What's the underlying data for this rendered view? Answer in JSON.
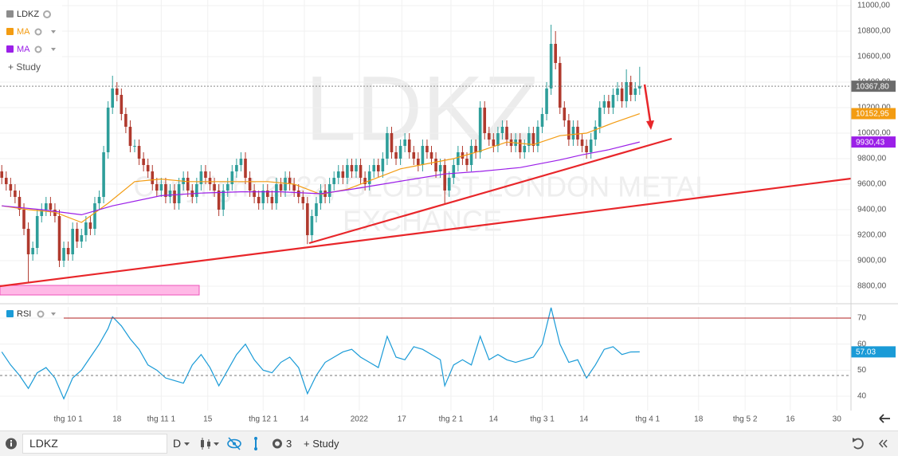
{
  "chart_data": [
    {
      "type": "candlestick",
      "name": "LDKZ",
      "color": "#8c8c8c",
      "up_color": "#2e9e9a",
      "down_color": "#b03a2e",
      "watermark": "LDKZ",
      "copyright": [
        "Copyright 2022, GLOBEST LONDON METAL",
        "EXCHANCE"
      ],
      "x": [
        0,
        1,
        2,
        3,
        4,
        5,
        6,
        7,
        8,
        9,
        10,
        11,
        12,
        13,
        14,
        15,
        16,
        17,
        18,
        19,
        20,
        21,
        22,
        23,
        24,
        25,
        26,
        27,
        28,
        29,
        30,
        31,
        32,
        33,
        34,
        35,
        36,
        37,
        38,
        39,
        40,
        41,
        42,
        43,
        44,
        45,
        46,
        47,
        48,
        49,
        50,
        51,
        52,
        53,
        54,
        55,
        56,
        57,
        58,
        59,
        60,
        61,
        62,
        63,
        64,
        65,
        66,
        67,
        68,
        69,
        70,
        71,
        72,
        73,
        74,
        75,
        76,
        77,
        78,
        79,
        80,
        81,
        82,
        83,
        84,
        85,
        86,
        87,
        88,
        89,
        90,
        91,
        92,
        93,
        94,
        95,
        96,
        97,
        98,
        99,
        100,
        101,
        102,
        103,
        104,
        105,
        106,
        107,
        108,
        109,
        110,
        111,
        112,
        113,
        114,
        115,
        116,
        117,
        118,
        119,
        120,
        121,
        122,
        123,
        124,
        125,
        126,
        127,
        128,
        129,
        130,
        131,
        132,
        133,
        134,
        135,
        136,
        137,
        138,
        139,
        140,
        141,
        142,
        143,
        144
      ],
      "open": [
        9700,
        9650,
        9600,
        9550,
        9500,
        9400,
        9250,
        9050,
        9100,
        9350,
        9400,
        9450,
        9400,
        9350,
        9000,
        9100,
        9050,
        9250,
        9150,
        9200,
        9300,
        9250,
        9450,
        9500,
        9850,
        10200,
        10350,
        10300,
        10150,
        10050,
        9900,
        9900,
        9800,
        9750,
        9700,
        9600,
        9550,
        9600,
        9500,
        9550,
        9450,
        9600,
        9650,
        9550,
        9500,
        9600,
        9700,
        9650,
        9600,
        9550,
        9400,
        9550,
        9600,
        9700,
        9750,
        9800,
        9650,
        9550,
        9500,
        9450,
        9550,
        9500,
        9450,
        9600,
        9550,
        9650,
        9600,
        9550,
        9500,
        9450,
        9200,
        9350,
        9450,
        9550,
        9500,
        9600,
        9650,
        9700,
        9650,
        9750,
        9700,
        9750,
        9650,
        9600,
        9700,
        9750,
        9700,
        9800,
        10000,
        9850,
        9800,
        9900,
        9950,
        9850,
        9800,
        9750,
        9900,
        9850,
        9800,
        9700,
        9750,
        9550,
        9650,
        9750,
        9850,
        9800,
        9750,
        9900,
        9850,
        10200,
        10000,
        9950,
        9900,
        10000,
        10050,
        9950,
        9900,
        9950,
        9850,
        9900,
        10000,
        9900,
        10050,
        10150,
        10350,
        10700,
        10550,
        10200,
        10100,
        9950,
        10050,
        9950,
        9900,
        9850,
        9950,
        10050,
        10200,
        10250,
        10200,
        10300,
        10350,
        10250,
        10400,
        10300,
        10350
      ],
      "high": [
        9750,
        9700,
        9650,
        9600,
        9550,
        9450,
        9300,
        9150,
        9400,
        9450,
        9500,
        9500,
        9450,
        9400,
        9150,
        9150,
        9300,
        9300,
        9250,
        9350,
        9350,
        9500,
        9550,
        9900,
        10250,
        10450,
        10400,
        10350,
        10200,
        10100,
        9950,
        9950,
        9850,
        9800,
        9750,
        9650,
        9650,
        9650,
        9600,
        9600,
        9650,
        9700,
        9700,
        9600,
        9650,
        9750,
        9750,
        9700,
        9650,
        9600,
        9600,
        9650,
        9750,
        9800,
        9850,
        9850,
        9700,
        9600,
        9550,
        9600,
        9600,
        9550,
        9650,
        9650,
        9700,
        9700,
        9650,
        9600,
        9550,
        9500,
        9400,
        9500,
        9600,
        9600,
        9650,
        9700,
        9750,
        9750,
        9800,
        9800,
        9800,
        9800,
        9700,
        9750,
        9800,
        9800,
        9850,
        10050,
        10050,
        9900,
        9950,
        10000,
        10000,
        9900,
        9850,
        9950,
        9950,
        9900,
        9850,
        9800,
        9800,
        9700,
        9800,
        9900,
        9900,
        9850,
        9950,
        9950,
        10250,
        10250,
        10050,
        10000,
        10050,
        10100,
        10100,
        10000,
        10000,
        10000,
        9950,
        10050,
        10050,
        10100,
        10200,
        10400,
        10850,
        10800,
        10600,
        10250,
        10150,
        10100,
        10100,
        10000,
        9950,
        10000,
        10100,
        10250,
        10300,
        10300,
        10350,
        10400,
        10400,
        10500,
        10450,
        10400,
        10520
      ],
      "low": [
        9600,
        9550,
        9500,
        9450,
        9350,
        9200,
        8830,
        9000,
        9050,
        9300,
        9350,
        9350,
        9300,
        8950,
        8950,
        9000,
        9000,
        9100,
        9100,
        9150,
        9200,
        9200,
        9400,
        9450,
        9800,
        10150,
        10250,
        10100,
        10000,
        9850,
        9850,
        9750,
        9700,
        9650,
        9550,
        9500,
        9500,
        9450,
        9450,
        9400,
        9400,
        9550,
        9500,
        9450,
        9450,
        9550,
        9600,
        9550,
        9500,
        9350,
        9350,
        9500,
        9550,
        9650,
        9700,
        9600,
        9500,
        9450,
        9400,
        9400,
        9450,
        9400,
        9400,
        9500,
        9500,
        9550,
        9500,
        9450,
        9400,
        9130,
        9150,
        9300,
        9400,
        9450,
        9450,
        9550,
        9600,
        9600,
        9600,
        9650,
        9650,
        9600,
        9550,
        9550,
        9650,
        9650,
        9650,
        9750,
        9800,
        9750,
        9750,
        9850,
        9800,
        9750,
        9700,
        9700,
        9800,
        9750,
        9650,
        9650,
        9450,
        9500,
        9600,
        9700,
        9750,
        9700,
        9700,
        9800,
        9800,
        9950,
        9900,
        9850,
        9850,
        9950,
        9900,
        9850,
        9850,
        9800,
        9800,
        9850,
        9850,
        9850,
        10000,
        10100,
        10300,
        10500,
        10150,
        10050,
        9900,
        9900,
        9900,
        9850,
        9800,
        9800,
        9900,
        10000,
        10150,
        10150,
        10150,
        10250,
        10200,
        10200,
        10250,
        10250,
        10300
      ],
      "close": [
        9650,
        9600,
        9550,
        9500,
        9400,
        9250,
        9050,
        9100,
        9350,
        9400,
        9450,
        9400,
        9350,
        9000,
        9100,
        9050,
        9250,
        9150,
        9200,
        9300,
        9250,
        9450,
        9500,
        9850,
        10200,
        10350,
        10300,
        10150,
        10050,
        9900,
        9900,
        9800,
        9750,
        9700,
        9600,
        9550,
        9600,
        9500,
        9550,
        9450,
        9600,
        9650,
        9550,
        9500,
        9600,
        9700,
        9650,
        9600,
        9550,
        9400,
        9550,
        9600,
        9700,
        9750,
        9800,
        9650,
        9550,
        9500,
        9450,
        9550,
        9500,
        9450,
        9600,
        9550,
        9650,
        9600,
        9550,
        9500,
        9450,
        9200,
        9350,
        9450,
        9550,
        9500,
        9600,
        9650,
        9700,
        9650,
        9750,
        9700,
        9750,
        9650,
        9600,
        9700,
        9750,
        9700,
        9800,
        10000,
        9850,
        9800,
        9900,
        9950,
        9850,
        9800,
        9750,
        9900,
        9850,
        9800,
        9700,
        9750,
        9550,
        9650,
        9750,
        9850,
        9800,
        9750,
        9900,
        9850,
        10200,
        10000,
        9950,
        9900,
        10000,
        10050,
        9950,
        9900,
        9950,
        9850,
        9900,
        10000,
        9900,
        10050,
        10150,
        10350,
        10700,
        10550,
        10200,
        10100,
        9950,
        10050,
        9950,
        9900,
        9850,
        9950,
        10050,
        10200,
        10250,
        10200,
        10300,
        10350,
        10250,
        10400,
        10300,
        10350,
        10367.8
      ],
      "last_price": {
        "value": 10367.8,
        "label": "10367,80"
      },
      "series": [
        {
          "name": "MA",
          "color": "#f39c12",
          "x": [
            0,
            6,
            12,
            18,
            24,
            30,
            36,
            42,
            48,
            54,
            60,
            66,
            72,
            78,
            84,
            90,
            96,
            102,
            108,
            114,
            120,
            126,
            132,
            138,
            144
          ],
          "values": [
            9430,
            9400,
            9380,
            9300,
            9450,
            9620,
            9640,
            9620,
            9620,
            9620,
            9620,
            9600,
            9520,
            9560,
            9640,
            9720,
            9760,
            9800,
            9860,
            9930,
            9910,
            9980,
            10000,
            10080,
            10152.95
          ],
          "value_labels": [
            null,
            null,
            null,
            null,
            null,
            null,
            null,
            null,
            null,
            null,
            null,
            null,
            null,
            null,
            null,
            null,
            null,
            null,
            null,
            null,
            null,
            null,
            null,
            null,
            "10152,95"
          ]
        },
        {
          "name": "MA",
          "color": "#9b1fe8",
          "x": [
            0,
            9,
            18,
            25,
            36,
            45,
            54,
            63,
            72,
            79,
            86,
            93,
            100,
            108,
            117,
            126,
            131,
            137,
            144
          ],
          "values": [
            9430,
            9400,
            9360,
            9430,
            9510,
            9530,
            9540,
            9540,
            9525,
            9560,
            9600,
            9640,
            9680,
            9700,
            9730,
            9790,
            9830,
            9870,
            9930.43
          ],
          "value_labels": [
            null,
            null,
            null,
            null,
            null,
            null,
            null,
            null,
            null,
            null,
            null,
            null,
            null,
            null,
            null,
            null,
            null,
            null,
            "9930,43"
          ]
        }
      ],
      "xlim": [
        -0.4,
        191.7
      ],
      "ylim": [
        8668.75,
        11043.75
      ],
      "yticks": [
        {
          "value": 8800,
          "label": "8800,00"
        },
        {
          "value": 9000,
          "label": "9000,00"
        },
        {
          "value": 9200,
          "label": "9200,00"
        },
        {
          "value": 9400,
          "label": "9400,00"
        },
        {
          "value": 9600,
          "label": "9600,00"
        },
        {
          "value": 9800,
          "label": "9800,00"
        },
        {
          "value": 10000,
          "label": "10000,00"
        },
        {
          "value": 10200,
          "label": "10200,00"
        },
        {
          "value": 10400,
          "label": "10400,00"
        },
        {
          "value": 10600,
          "label": "10600,00"
        },
        {
          "value": 10800,
          "label": "10800,00"
        },
        {
          "value": 11000,
          "label": "11000,00"
        }
      ],
      "grid": true,
      "study_button": "+ Study"
    },
    {
      "type": "line",
      "series": [
        {
          "name": "RSI",
          "color": "#1a9bd7",
          "x": [
            0,
            2,
            4,
            6,
            8,
            10,
            12,
            14,
            16,
            18,
            20,
            22,
            24,
            25,
            27,
            29,
            31,
            33,
            35,
            37,
            39,
            41,
            43,
            45,
            47,
            49,
            51,
            53,
            55,
            57,
            59,
            61,
            63,
            65,
            67,
            69,
            71,
            73,
            75,
            77,
            79,
            81,
            83,
            85,
            87,
            89,
            91,
            93,
            95,
            97,
            99,
            100,
            102,
            104,
            106,
            108,
            110,
            112,
            114,
            116,
            118,
            120,
            122,
            124,
            126,
            128,
            130,
            132,
            134,
            136,
            138,
            140,
            142,
            144
          ],
          "values": [
            57,
            52,
            48,
            43,
            49,
            51,
            47,
            39,
            47,
            50,
            55,
            60,
            66,
            70.5,
            67,
            62,
            58,
            52,
            50,
            47,
            46,
            45,
            52,
            56,
            51,
            44,
            50,
            56,
            60,
            54,
            50,
            49,
            53,
            55,
            51,
            41,
            48,
            53,
            55,
            57,
            58,
            55,
            53,
            51,
            63,
            55,
            54,
            59,
            58,
            56,
            54,
            44,
            52,
            54,
            52,
            63,
            54,
            56,
            54,
            53,
            54,
            55,
            60,
            74,
            60,
            53,
            54,
            47,
            52,
            58,
            59,
            56,
            57,
            57.03
          ]
        }
      ],
      "xlim": [
        -0.4,
        191.7
      ],
      "ylim": [
        34.49,
        74.29
      ],
      "yticks": [
        40,
        50,
        60,
        70
      ],
      "xticks": [
        {
          "value": 15,
          "label": "thg 10 1"
        },
        {
          "value": 26,
          "label": "18"
        },
        {
          "value": 36,
          "label": "thg 11 1"
        },
        {
          "value": 46.5,
          "label": "15"
        },
        {
          "value": 59,
          "label": "thg 12 1"
        },
        {
          "value": 68.3,
          "label": "14"
        },
        {
          "value": 80.7,
          "label": "2022"
        },
        {
          "value": 90.3,
          "label": "17"
        },
        {
          "value": 101.4,
          "label": "thg 2 1"
        },
        {
          "value": 111,
          "label": "14"
        },
        {
          "value": 122,
          "label": "thg 3 1"
        },
        {
          "value": 131.4,
          "label": "14"
        },
        {
          "value": 145.8,
          "label": "thg 4 1"
        },
        {
          "value": 157.3,
          "label": "18"
        },
        {
          "value": 167.8,
          "label": "thg 5 2"
        },
        {
          "value": 178,
          "label": "16"
        },
        {
          "value": 188.5,
          "label": "30"
        }
      ],
      "grid": true
    }
  ],
  "toolbar": {
    "symbol": "LDKZ",
    "period": "D",
    "studies_count": 3,
    "study_button": "+ Study"
  }
}
